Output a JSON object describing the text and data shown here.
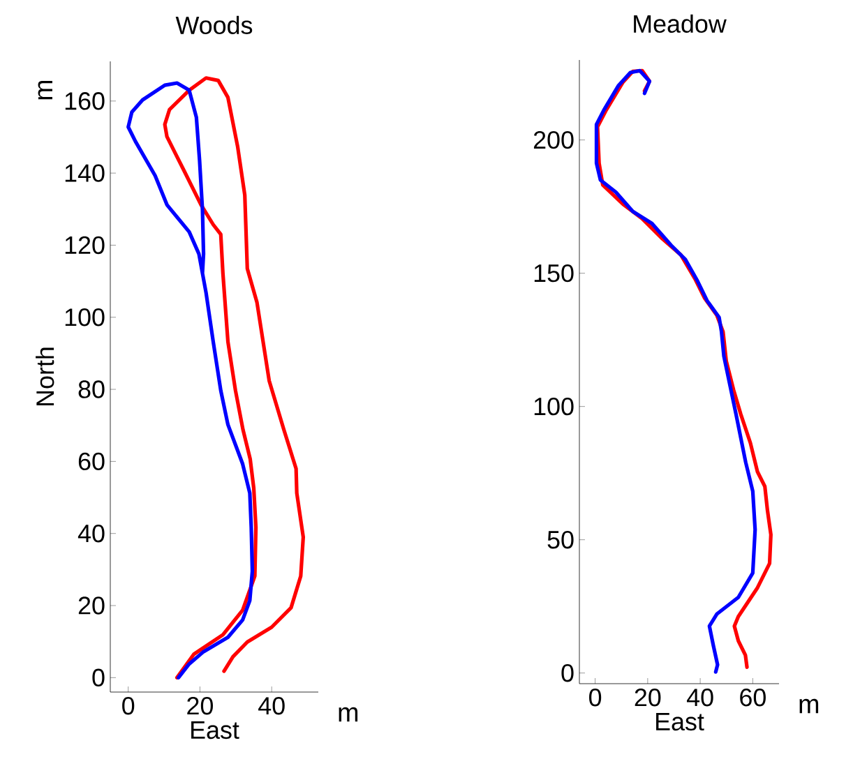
{
  "chart_data": [
    {
      "type": "line",
      "title": "Woods",
      "xlabel": "East",
      "ylabel": "North",
      "annotations": [
        "m",
        "m"
      ],
      "xlim": [
        -5,
        53
      ],
      "ylim": [
        -4,
        171
      ],
      "xticks": [
        0,
        20,
        40
      ],
      "yticks": [
        0,
        20,
        40,
        60,
        80,
        100,
        120,
        140,
        160
      ],
      "grid": false,
      "marker": "none",
      "line_style": "solid",
      "series": [
        {
          "color": "#ff0000",
          "x": [
            13.6,
            18.3,
            26.4,
            31.9,
            35.3,
            35.6,
            35,
            34,
            32,
            29.9,
            27.8,
            26.4,
            25.8,
            23.7,
            20.3,
            15.6,
            10.8,
            10.2,
            11.5,
            17,
            21.7,
            25.1,
            27.8,
            30.5,
            32.5,
            33.2,
            35.9,
            39.3,
            43.4,
            46.8,
            47,
            48.8,
            48.1,
            45.4,
            40,
            33.2,
            29.2,
            26.7
          ],
          "values": [
            0,
            6.5,
            11.9,
            18.7,
            28.2,
            41.7,
            52.6,
            60.7,
            68.8,
            79.7,
            93.2,
            112.2,
            123,
            125.7,
            131.2,
            140.6,
            150.1,
            153.5,
            157.6,
            163,
            166.4,
            165.7,
            161,
            147.4,
            133.9,
            113.5,
            104.1,
            82.4,
            68.8,
            58,
            51.2,
            39,
            28.2,
            19.4,
            14,
            9.9,
            5.8,
            1.8
          ]
        },
        {
          "color": "#0000ff",
          "x": [
            14,
            17,
            21,
            27.8,
            31.9,
            33.9,
            34.6,
            34.3,
            33.9,
            31.9,
            27.8,
            25.8,
            23.7,
            21.7,
            19.7,
            17,
            10.8,
            7.5,
            2,
            0,
            1,
            4,
            10.2,
            13.6,
            17,
            19,
            19.9,
            20.7,
            21,
            20.7
          ],
          "values": [
            0,
            3.8,
            7.2,
            11.2,
            16,
            21.4,
            29.5,
            41.7,
            51.2,
            59.3,
            70.2,
            79.7,
            93.2,
            106.8,
            117.6,
            123.7,
            131.2,
            139.3,
            148.8,
            152.8,
            156.9,
            160.3,
            164.4,
            165,
            163,
            155.5,
            143.4,
            129.8,
            117.6,
            112.2
          ]
        }
      ]
    },
    {
      "type": "line",
      "title": "Meadow",
      "xlabel": "East",
      "annotations": [
        "m"
      ],
      "xlim": [
        -6,
        70
      ],
      "ylim": [
        -4,
        230
      ],
      "xticks": [
        0,
        20,
        40,
        60
      ],
      "yticks": [
        0,
        50,
        100,
        150,
        200
      ],
      "grid": false,
      "marker": "none",
      "line_style": "solid",
      "series": [
        {
          "color": "#ff0000",
          "x": [
            57.8,
            57.2,
            54.5,
            53,
            54.5,
            61.8,
            66.4,
            66.9,
            65.6,
            64.6,
            61.8,
            59.1,
            55.4,
            52.7,
            49.9,
            48.7,
            46.3,
            41.7,
            38,
            32.6,
            25.3,
            17.9,
            10.6,
            2.9,
            1.5,
            0.9,
            4.2,
            10.6,
            14.3,
            17.9,
            20.7,
            18.8
          ],
          "values": [
            2.2,
            6.7,
            12.1,
            17.6,
            21.2,
            32,
            41.1,
            51.9,
            61,
            70,
            75.5,
            86.3,
            97.2,
            106.2,
            117.1,
            128,
            134.3,
            140.6,
            147.9,
            156.9,
            163.2,
            170.5,
            175.9,
            183.1,
            191.3,
            204.9,
            211.2,
            221.7,
            225.7,
            226,
            222,
            218.4
          ]
        },
        {
          "color": "#0000ff",
          "x": [
            45.9,
            46.6,
            45,
            43.5,
            46.3,
            54.5,
            60,
            60.9,
            60,
            57.3,
            53.6,
            50.9,
            49,
            48.1,
            47.2,
            42.6,
            39,
            34.4,
            28.9,
            21.6,
            14.3,
            7.9,
            2,
            0.5,
            0.5,
            3.3,
            8.8,
            13.4,
            17,
            20.7,
            18.8
          ],
          "values": [
            0.4,
            3.1,
            10.3,
            17.6,
            22.1,
            28.4,
            37.5,
            53.8,
            68.2,
            79.1,
            97.2,
            109.9,
            118.9,
            128,
            133.4,
            139.7,
            147,
            155.1,
            160.5,
            168.7,
            173.2,
            180.4,
            185,
            191.3,
            205.8,
            211.2,
            220.3,
            225.3,
            226,
            222,
            217.5
          ]
        }
      ]
    }
  ]
}
